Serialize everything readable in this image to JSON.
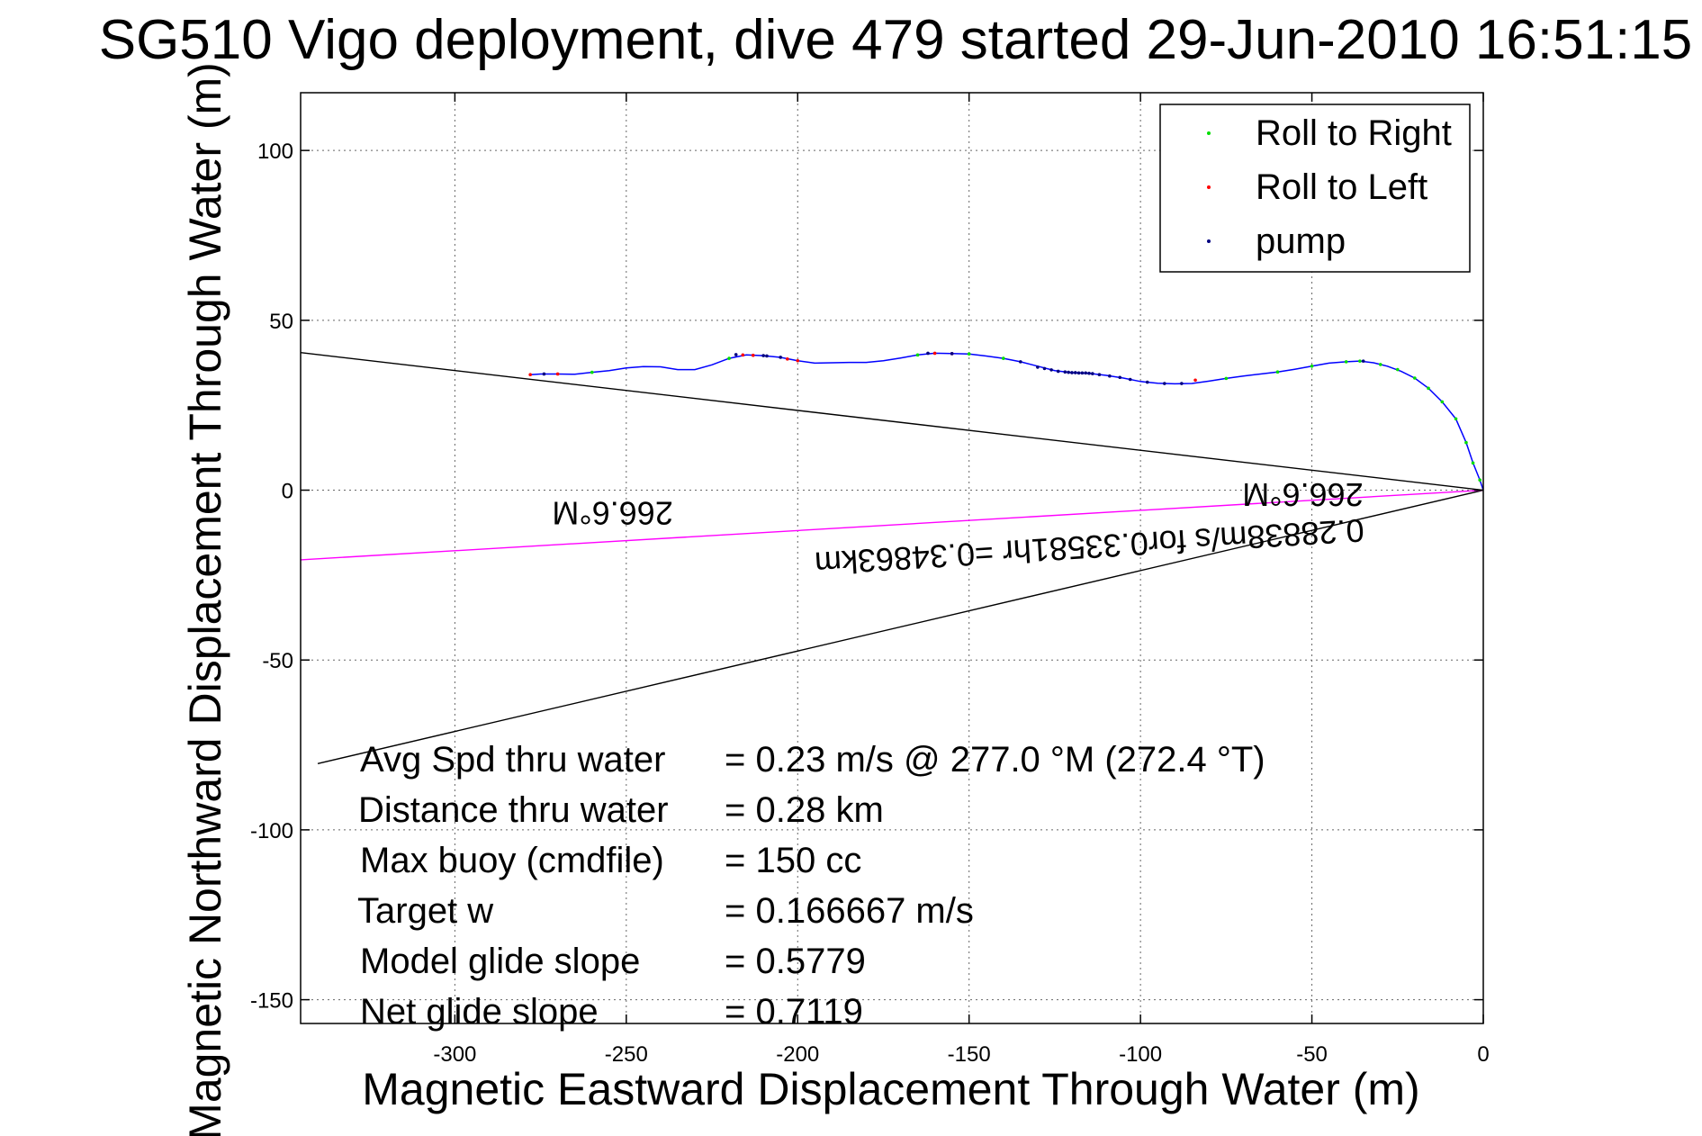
{
  "chart_data": {
    "type": "line",
    "title": "SG510 Vigo deployment, dive 479 started 29-Jun-2010 16:51:15",
    "xlabel": "Magnetic Eastward Displacement Through Water (m)",
    "ylabel": "Magnetic Northward Displacement Through Water (m)",
    "xlim": [
      -345,
      0
    ],
    "ylim": [
      -157,
      117
    ],
    "xticks": [
      -300,
      -250,
      -200,
      -150,
      -100,
      -50,
      0
    ],
    "yticks": [
      100,
      50,
      0,
      -50,
      -100,
      -150
    ],
    "xtick_labels": [
      "-300",
      "-250",
      "-200",
      "-150",
      "-100",
      "-50",
      "0"
    ],
    "ytick_labels": [
      "100",
      "50",
      "0",
      "-50",
      "-100",
      "-150"
    ],
    "grid": true,
    "legend_position": "top-right",
    "legend": [
      {
        "label": "Roll to Right",
        "color": "#00dd00"
      },
      {
        "label": "Roll to Left",
        "color": "#ff0000"
      },
      {
        "label": "pump",
        "color": "#000080"
      }
    ],
    "track": {
      "color": "#0000ff",
      "x": [
        0,
        -1,
        -3,
        -5,
        -8,
        -12,
        -16,
        -20,
        -24,
        -28,
        -32,
        -36,
        -40,
        -45,
        -50,
        -55,
        -60,
        -65,
        -70,
        -75,
        -80,
        -85,
        -90,
        -95,
        -100,
        -105,
        -110,
        -115,
        -120,
        -125,
        -130,
        -135,
        -140,
        -145,
        -150,
        -155,
        -160,
        -165,
        -170,
        -175,
        -180,
        -185,
        -190,
        -195,
        -200,
        -205,
        -210,
        -215,
        -220,
        -225,
        -230,
        -235,
        -240,
        -245,
        -250,
        -255,
        -260,
        -265,
        -270,
        -275,
        -278
      ],
      "y": [
        0,
        3,
        8,
        14,
        21,
        26,
        30,
        33,
        35,
        36.5,
        37.5,
        38,
        37.8,
        37.4,
        36.5,
        35.6,
        34.8,
        34.2,
        33.6,
        32.9,
        32.1,
        31.4,
        31.3,
        31.5,
        32,
        33,
        33.8,
        34.4,
        34.6,
        35.2,
        36.5,
        37.8,
        38.8,
        39.5,
        40.1,
        40.2,
        40.3,
        39.8,
        38.9,
        38.1,
        37.6,
        37.6,
        37.5,
        37.4,
        38.1,
        39.1,
        39.6,
        39.8,
        38.8,
        36.9,
        35.5,
        35.5,
        36.3,
        36.4,
        36,
        35.2,
        34.7,
        34.1,
        34.2,
        34.2,
        34
      ]
    },
    "markers": {
      "roll_right": {
        "x": [
          -1,
          -3,
          -5,
          -8,
          -12,
          -16,
          -20,
          -25,
          -30,
          -36,
          -40,
          -50,
          -60,
          -75,
          -140,
          -150,
          -165,
          -220,
          -260
        ],
        "y": [
          3,
          8,
          14,
          21,
          26,
          30,
          33,
          35.5,
          37,
          38,
          37.8,
          36.5,
          34.8,
          32.9,
          38.8,
          40.1,
          39.8,
          38.8,
          34.7
        ]
      },
      "roll_left": {
        "x": [
          -84,
          -155,
          -160,
          -200,
          -203,
          -213,
          -216,
          -270,
          -278
        ],
        "y": [
          32.4,
          40.2,
          40.3,
          38.1,
          38.6,
          39.7,
          39.8,
          34.2,
          34
        ]
      },
      "pump": {
        "x": [
          -35,
          -88,
          -93,
          -98,
          -103,
          -106,
          -109,
          -112,
          -114,
          -115,
          -116,
          -117,
          -118,
          -119,
          -120,
          -121,
          -122,
          -124,
          -126,
          -128,
          -130,
          -135,
          -155,
          -162,
          -205,
          -209,
          -210,
          -218,
          -274
        ],
        "y": [
          38,
          31.4,
          31.4,
          31.8,
          32.6,
          33.2,
          33.6,
          34,
          34.3,
          34.4,
          34.5,
          34.5,
          34.5,
          34.6,
          34.6,
          34.7,
          34.8,
          35,
          35.4,
          35.8,
          36.2,
          37.8,
          40.2,
          40.3,
          39.1,
          39.5,
          39.6,
          39.9,
          34.2
        ]
      }
    },
    "reference_lines": [
      {
        "color": "#000000",
        "x": [
          0,
          -345
        ],
        "y": [
          0,
          40.5
        ]
      },
      {
        "color": "#000000",
        "x": [
          0,
          -340
        ],
        "y": [
          0,
          -80.5
        ]
      },
      {
        "color": "#ff00ff",
        "x": [
          0,
          -345
        ],
        "y": [
          0,
          -20.5
        ]
      }
    ],
    "annotations": [
      {
        "text": "266.6°M",
        "x": -35,
        "y": 2,
        "rotation_deg": 180
      },
      {
        "text": "0.28838m/s for0.33581hr =0.34863km",
        "x": -35,
        "y": -8.5,
        "rotation_deg": 176.5
      },
      {
        "text": "266.6°M",
        "x": -254,
        "y": -3.5,
        "rotation_deg": 180
      }
    ],
    "stats": [
      {
        "label": "Avg Spd thru water",
        "value": "=  0.23 m/s @ 277.0 °M (272.4 °T)"
      },
      {
        "label": "Distance thru water",
        "value": "=  0.28 km"
      },
      {
        "label": "Max buoy (cmdfile)",
        "value": "= 150 cc"
      },
      {
        "label": "Target w",
        "value": "= 0.166667 m/s"
      },
      {
        "label": "Model glide slope",
        "value": "= 0.5779"
      },
      {
        "label": "Net glide slope",
        "value": "= 0.7119"
      }
    ]
  }
}
